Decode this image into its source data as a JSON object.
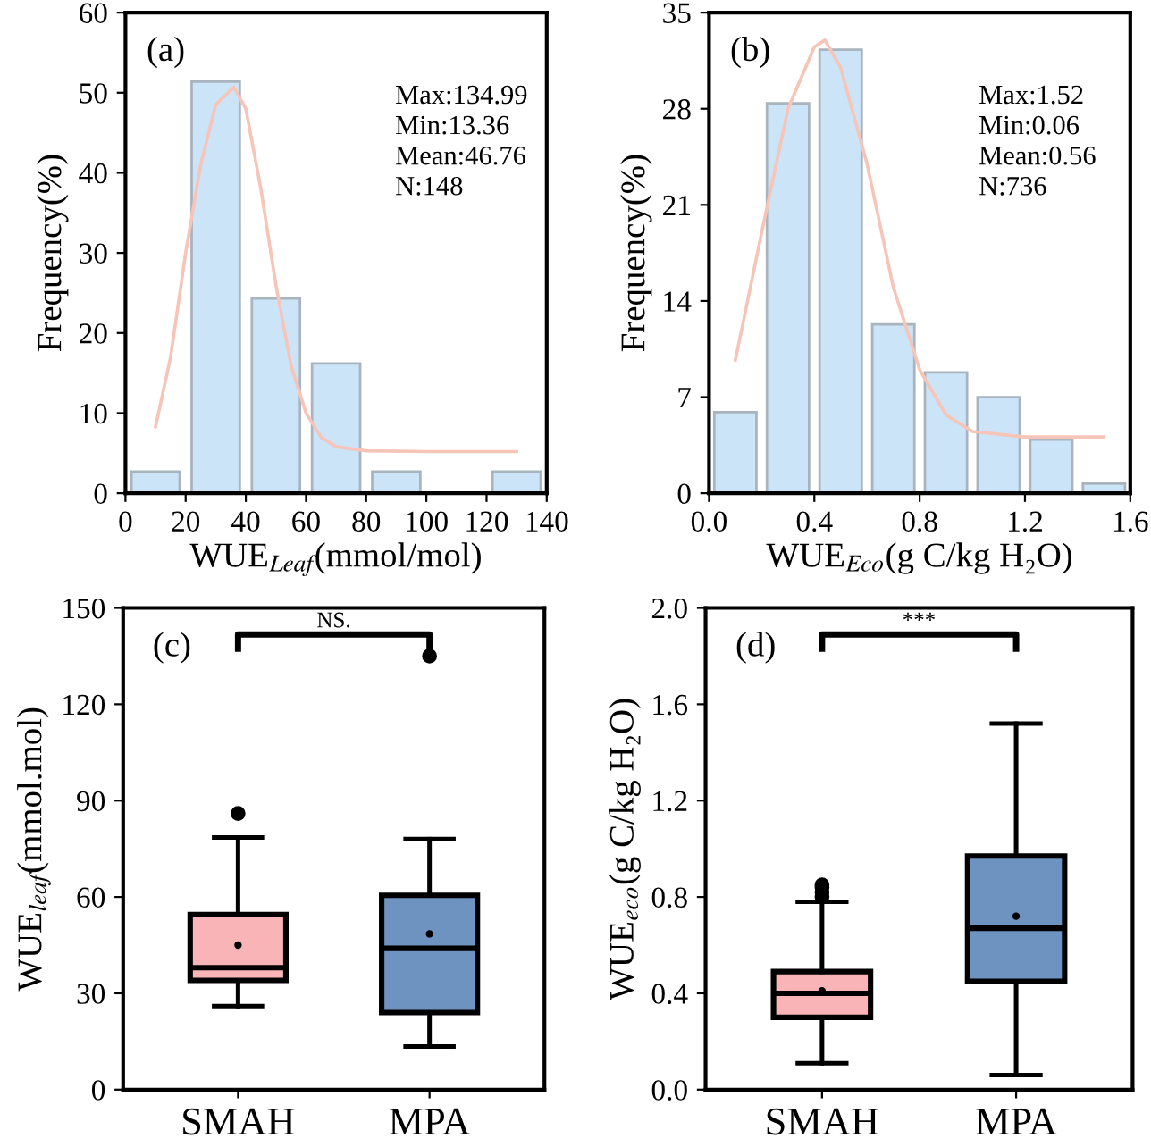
{
  "chart_data": [
    {
      "type": "histogram",
      "bins": [
        0,
        20,
        40,
        60,
        80,
        100,
        120,
        140
      ],
      "values": [
        2.7,
        51.4,
        24.3,
        16.2,
        2.7,
        0,
        2.7
      ],
      "color": "#cce4f7",
      "series": [
        {
          "type": "line",
          "color": "#f7c4b8",
          "x": [
            10,
            15,
            20,
            25,
            30,
            36,
            40,
            45,
            50,
            55,
            60,
            65,
            70,
            80,
            100,
            130
          ],
          "values": [
            8.3,
            17,
            30,
            41,
            48.5,
            50.7,
            48,
            38,
            26,
            16,
            10,
            7,
            5.8,
            5.3,
            5.2,
            5.2
          ]
        }
      ],
      "xlabel": "WUE$_{Leaf}$(mmol/mol)",
      "ylabel": "Frequency(%)",
      "xlim": [
        0,
        140
      ],
      "xticks": [
        0,
        20,
        40,
        60,
        80,
        100,
        120,
        140
      ],
      "ylim": [
        0,
        60
      ],
      "yticks": [
        0,
        10,
        20,
        30,
        40,
        50,
        60
      ],
      "grid": false,
      "legend": false,
      "annotations": [
        "(a)",
        "Max:134.99\nMin:13.36\nMean:46.76\nN:148"
      ]
    },
    {
      "type": "histogram",
      "bins": [
        0,
        0.2,
        0.4,
        0.6,
        0.8,
        1.0,
        1.2,
        1.4,
        1.6
      ],
      "values": [
        5.9,
        28.4,
        32.3,
        12.3,
        8.8,
        7.0,
        3.9,
        0.7
      ],
      "color": "#cce4f7",
      "series": [
        {
          "type": "line",
          "color": "#f7c4b8",
          "x": [
            0.1,
            0.2,
            0.3,
            0.4,
            0.44,
            0.5,
            0.6,
            0.7,
            0.8,
            0.9,
            1.0,
            1.2,
            1.5
          ],
          "values": [
            9.7,
            19,
            28,
            32.5,
            33.0,
            31,
            24,
            15,
            9,
            5.7,
            4.5,
            4.1,
            4.1
          ]
        }
      ],
      "xlabel": "WUE$_{Eco}$(g C/kg H₂O)",
      "ylabel": "Frequency(%)",
      "xlim": [
        0,
        1.6
      ],
      "xticks": [
        {
          "value": 0,
          "label": "0.0"
        },
        0.4,
        0.8,
        1.2,
        1.6
      ],
      "ylim": [
        0,
        35
      ],
      "yticks": [
        0,
        7,
        14,
        21,
        28,
        35
      ],
      "grid": false,
      "legend": false,
      "annotations": [
        "(b)",
        "Max:1.52\nMin:0.06\nMean:0.56\nN:736"
      ]
    },
    {
      "type": "box",
      "categories": [
        "SMAH",
        "MPA"
      ],
      "colors": [
        "#f9b4b8",
        "#6e93c0"
      ],
      "boxes": [
        {
          "low": 26,
          "q1": 34,
          "median": 38,
          "q3": 54.5,
          "high": 78.5,
          "mean": 45,
          "outliers": [
            86
          ]
        },
        {
          "low": 13.4,
          "q1": 24,
          "median": 44,
          "q3": 60.5,
          "high": 78,
          "mean": 48.5,
          "outliers": [
            135
          ]
        }
      ],
      "ylabel": "WUE$_{leaf}$(mmol.mol)",
      "ylim": [
        0,
        150
      ],
      "yticks": [
        0,
        30,
        60,
        90,
        120,
        150
      ],
      "grid": false,
      "legend": false,
      "annotations": [
        "(c)",
        "NS."
      ]
    },
    {
      "type": "box",
      "categories": [
        "SMAH",
        "MPA"
      ],
      "colors": [
        "#f9b4b8",
        "#6e93c0"
      ],
      "boxes": [
        {
          "low": 0.11,
          "q1": 0.3,
          "median": 0.4,
          "q3": 0.49,
          "high": 0.78,
          "mean": 0.41,
          "outliers": [
            0.8,
            0.82,
            0.84,
            0.85
          ]
        },
        {
          "low": 0.06,
          "q1": 0.45,
          "median": 0.67,
          "q3": 0.97,
          "high": 1.52,
          "mean": 0.72
        }
      ],
      "ylabel": "WUE$_{eco}$(g C/kg H₂O)",
      "ylim": [
        0,
        2.0
      ],
      "yticks": [
        {
          "value": 0,
          "label": "0.0"
        },
        0.4,
        0.8,
        1.2,
        1.6,
        {
          "value": 2.0,
          "label": "2.0"
        }
      ],
      "grid": false,
      "legend": false,
      "annotations": [
        "(d)",
        "***"
      ]
    }
  ]
}
